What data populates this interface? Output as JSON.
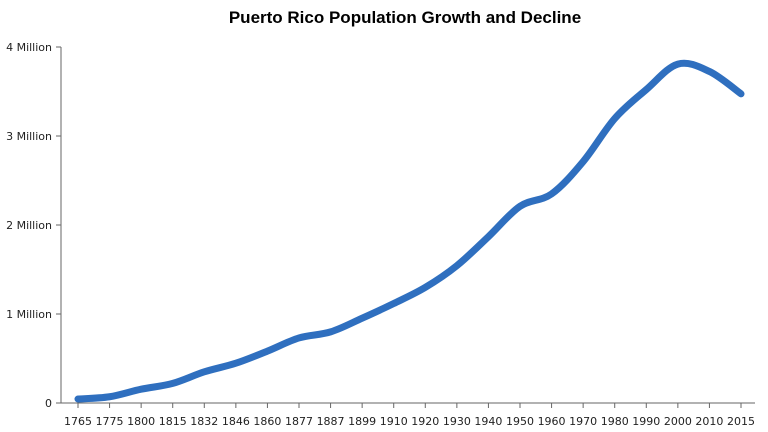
{
  "chart_data": {
    "type": "line",
    "title": "Puerto Rico Population Growth and Decline",
    "xlabel": "",
    "ylabel": "",
    "categories": [
      "1765",
      "1775",
      "1800",
      "1815",
      "1832",
      "1846",
      "1860",
      "1877",
      "1887",
      "1899",
      "1910",
      "1920",
      "1930",
      "1940",
      "1950",
      "1960",
      "1970",
      "1980",
      "1990",
      "2000",
      "2010",
      "2015"
    ],
    "series": [
      {
        "values": [
          44883,
          70000,
          155000,
          220000,
          350000,
          447000,
          583000,
          731000,
          799000,
          953000,
          1118000,
          1299000,
          1543000,
          1869000,
          2210000,
          2349000,
          2712000,
          3196000,
          3522000,
          3808000,
          3725000,
          3474000
        ]
      }
    ],
    "ylim": [
      0,
      4000000
    ],
    "yticks": [
      0,
      1000000,
      2000000,
      3000000,
      4000000
    ],
    "ytick_labels": [
      "0",
      "1 Million",
      "2 Million",
      "3 Million",
      "4 Million"
    ],
    "grid": false,
    "line_color": "#2f6fbf"
  }
}
